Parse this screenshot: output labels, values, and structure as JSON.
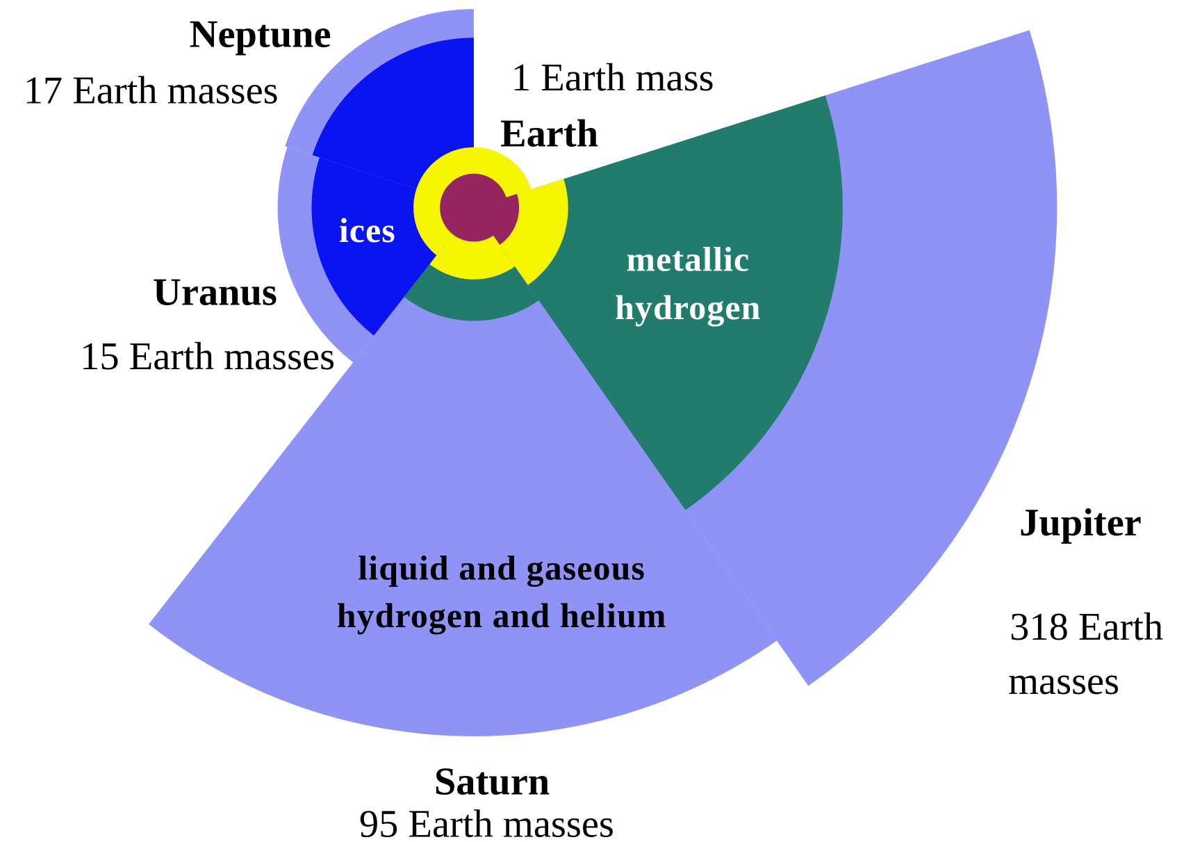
{
  "planets": [
    {
      "name": "Neptune",
      "mass": "17 Earth masses"
    },
    {
      "name": "Uranus",
      "mass": "15 Earth masses"
    },
    {
      "name": "Earth",
      "mass": "1 Earth mass"
    },
    {
      "name": "Jupiter",
      "mass": [
        "318 Earth",
        "masses"
      ]
    },
    {
      "name": "Saturn",
      "mass": "95 Earth masses"
    }
  ],
  "layers": {
    "ices": "ices",
    "metallic": [
      "metallic",
      "hydrogen"
    ],
    "envelope": [
      "liquid and gaseous",
      "hydrogen and helium"
    ]
  }
}
